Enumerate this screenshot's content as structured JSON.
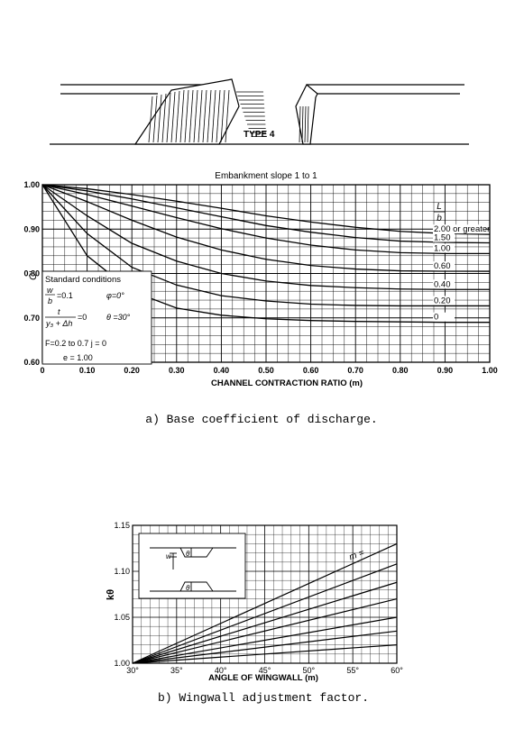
{
  "type4_label": "TYPE 4",
  "chart_data": [
    {
      "type": "line",
      "title": "Embankment slope 1 to 1",
      "xlabel": "CHANNEL CONTRACTION RATIO (m)",
      "ylabel": "C'",
      "xlim": [
        0,
        1.0
      ],
      "ylim": [
        0.6,
        1.0
      ],
      "x_ticks": [
        "0",
        "0.10",
        "0.20",
        "0.30",
        "0.40",
        "0.50",
        "0.60",
        "0.70",
        "0.80",
        "0.90",
        "1.00"
      ],
      "y_ticks": [
        "0.60",
        "0.70",
        "0.80",
        "0.90",
        "1.00"
      ],
      "grid": true,
      "legend_title": "L/b",
      "legend_title_top": "L",
      "legend_title_bottom": "b",
      "series": [
        {
          "name": "2.00 or greater",
          "x": [
            0,
            0.1,
            0.2,
            0.3,
            0.4,
            0.5,
            0.6,
            0.7,
            0.8,
            0.9,
            1.0
          ],
          "y": [
            1.0,
            0.991,
            0.978,
            0.963,
            0.947,
            0.93,
            0.916,
            0.904,
            0.895,
            0.89,
            0.888
          ]
        },
        {
          "name": "1.50",
          "x": [
            0,
            0.1,
            0.2,
            0.3,
            0.4,
            0.5,
            0.6,
            0.7,
            0.8,
            0.9,
            1.0
          ],
          "y": [
            1.0,
            0.986,
            0.968,
            0.948,
            0.928,
            0.908,
            0.893,
            0.881,
            0.873,
            0.87,
            0.869
          ]
        },
        {
          "name": "1.00",
          "x": [
            0,
            0.1,
            0.2,
            0.3,
            0.4,
            0.5,
            0.6,
            0.7,
            0.8,
            0.9,
            1.0
          ],
          "y": [
            1.0,
            0.978,
            0.952,
            0.926,
            0.901,
            0.88,
            0.864,
            0.853,
            0.847,
            0.845,
            0.845
          ]
        },
        {
          "name": "0.60",
          "x": [
            0,
            0.1,
            0.2,
            0.3,
            0.4,
            0.5,
            0.6,
            0.7,
            0.8,
            0.9,
            1.0
          ],
          "y": [
            1.0,
            0.962,
            0.92,
            0.882,
            0.853,
            0.832,
            0.818,
            0.81,
            0.806,
            0.805,
            0.805
          ]
        },
        {
          "name": "0.40",
          "x": [
            0,
            0.1,
            0.2,
            0.3,
            0.4,
            0.5,
            0.6,
            0.7,
            0.8,
            0.9,
            1.0
          ],
          "y": [
            1.0,
            0.93,
            0.868,
            0.828,
            0.8,
            0.783,
            0.773,
            0.768,
            0.765,
            0.764,
            0.764
          ]
        },
        {
          "name": "0.20",
          "x": [
            0,
            0.1,
            0.2,
            0.3,
            0.4,
            0.5,
            0.6,
            0.7,
            0.8,
            0.9,
            1.0
          ],
          "y": [
            1.0,
            0.89,
            0.814,
            0.774,
            0.75,
            0.738,
            0.731,
            0.728,
            0.727,
            0.727,
            0.727
          ]
        },
        {
          "name": "0",
          "x": [
            0,
            0.1,
            0.2,
            0.3,
            0.4,
            0.5,
            0.6,
            0.7,
            0.8,
            0.9,
            1.0
          ],
          "y": [
            1.0,
            0.84,
            0.76,
            0.722,
            0.706,
            0.698,
            0.694,
            0.692,
            0.691,
            0.69,
            0.69
          ]
        }
      ],
      "standard_conditions": {
        "title": "Standard conditions",
        "w_num": "w",
        "w_den": "b",
        "w_val": "=0.1",
        "phi": "φ=0°",
        "t_num": "t",
        "t_den": "y₃ + Δh",
        "t_val": "=0",
        "theta": "θ =30°",
        "f_line": "F=0.2 to 0.7 j = 0",
        "e_line": "e = 1.00"
      },
      "caption": "a) Base coefficient of discharge."
    },
    {
      "type": "line",
      "xlabel": "ANGLE OF WINGWALL (m)",
      "ylabel": "kθ",
      "xlim": [
        30,
        60
      ],
      "ylim": [
        1.0,
        1.15
      ],
      "x_ticks": [
        "30°",
        "35°",
        "40°",
        "45°",
        "50°",
        "55°",
        "60°"
      ],
      "y_ticks": [
        "1.00",
        "1.05",
        "1.10",
        "1.15"
      ],
      "grid": true,
      "legend_prefix": "m =",
      "series": [
        {
          "name": "0.80",
          "x": [
            30,
            60
          ],
          "y": [
            1.0,
            1.13
          ]
        },
        {
          "name": "0.60",
          "x": [
            30,
            60
          ],
          "y": [
            1.0,
            1.108
          ]
        },
        {
          "name": "0.50",
          "x": [
            30,
            60
          ],
          "y": [
            1.0,
            1.088
          ]
        },
        {
          "name": "0.40",
          "x": [
            30,
            60
          ],
          "y": [
            1.0,
            1.07
          ]
        },
        {
          "name": "0.30",
          "x": [
            30,
            60
          ],
          "y": [
            1.0,
            1.05
          ]
        },
        {
          "name": "0.20",
          "x": [
            30,
            60
          ],
          "y": [
            1.0,
            1.035
          ]
        },
        {
          "name": "0.10",
          "x": [
            30,
            60
          ],
          "y": [
            1.0,
            1.02
          ]
        }
      ],
      "inset_labels": {
        "theta": "θ",
        "w": "w"
      },
      "caption": "b) Wingwall adjustment factor."
    }
  ]
}
